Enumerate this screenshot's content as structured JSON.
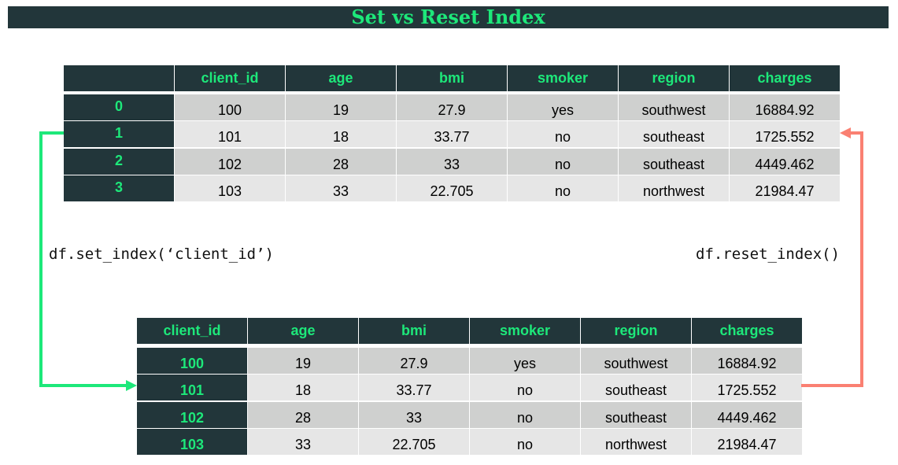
{
  "title": "Set vs Reset Index",
  "colors": {
    "header_bg": "#22363a",
    "header_text": "#1de87a",
    "set_arrow": "#1de87a",
    "reset_arrow": "#fa8072"
  },
  "top_table": {
    "columns": [
      "",
      "client_id",
      "age",
      "bmi",
      "smoker",
      "region",
      "charges"
    ],
    "rows": [
      [
        "0",
        "100",
        "19",
        "27.9",
        "yes",
        "southwest",
        "16884.92"
      ],
      [
        "1",
        "101",
        "18",
        "33.77",
        "no",
        "southeast",
        "1725.552"
      ],
      [
        "2",
        "102",
        "28",
        "33",
        "no",
        "southeast",
        "4449.462"
      ],
      [
        "3",
        "103",
        "33",
        "22.705",
        "no",
        "northwest",
        "21984.47"
      ]
    ]
  },
  "bottom_table": {
    "columns": [
      "client_id",
      "age",
      "bmi",
      "smoker",
      "region",
      "charges"
    ],
    "rows": [
      [
        "100",
        "19",
        "27.9",
        "yes",
        "southwest",
        "16884.92"
      ],
      [
        "101",
        "18",
        "33.77",
        "no",
        "southeast",
        "1725.552"
      ],
      [
        "102",
        "28",
        "33",
        "no",
        "southeast",
        "4449.462"
      ],
      [
        "103",
        "33",
        "22.705",
        "no",
        "northwest",
        "21984.47"
      ]
    ]
  },
  "set_index_code": "df.set_index(‘client_id’)",
  "reset_index_code": "df.reset_index()"
}
